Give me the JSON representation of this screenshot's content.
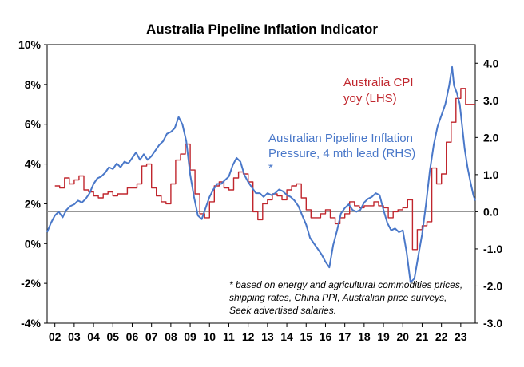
{
  "chart_data": {
    "type": "line",
    "title": "Australia Pipeline Inflation Indicator",
    "y_left": {
      "ticks": [
        "10%",
        "8%",
        "6%",
        "4%",
        "2%",
        "0%",
        "-2%",
        "-4%"
      ],
      "range": [
        -4,
        10
      ]
    },
    "y_right": {
      "ticks": [
        "4.0",
        "3.0",
        "2.0",
        "1.0",
        "0.0",
        "-1.0",
        "-2.0",
        "-3.0"
      ],
      "range": [
        -3,
        4.5
      ]
    },
    "x": {
      "ticks": [
        "02",
        "03",
        "04",
        "05",
        "06",
        "07",
        "08",
        "09",
        "10",
        "11",
        "12",
        "13",
        "14",
        "15",
        "16",
        "17",
        "18",
        "19",
        "20",
        "21",
        "22",
        "23"
      ],
      "range": [
        2001.6,
        2023.75
      ]
    },
    "zero_line_value": 0,
    "annotations": {
      "cpi_line1": "Australia CPI",
      "cpi_line2": "yoy (LHS)",
      "pipe_line1": "Australian Pipeline Inflation",
      "pipe_line2": "Pressure, 4 mth lead (RHS)",
      "pipe_line3": "*",
      "footnote": [
        "* based on energy and agricultural commodities prices,",
        "shipping rates, China PPI, Australian price surveys,",
        "Seek advertised salaries."
      ]
    },
    "colors": {
      "cpi": "#c0262d",
      "pipeline": "#4a78c9",
      "axis": "#000000",
      "zero": "#888888"
    },
    "series": [
      {
        "name": "Australia CPI yoy (LHS)",
        "axis": "left",
        "step": true,
        "points": [
          [
            2002.0,
            2.9
          ],
          [
            2002.25,
            2.8
          ],
          [
            2002.5,
            3.3
          ],
          [
            2002.75,
            3.0
          ],
          [
            2003.0,
            3.2
          ],
          [
            2003.25,
            3.4
          ],
          [
            2003.5,
            2.7
          ],
          [
            2003.75,
            2.6
          ],
          [
            2004.0,
            2.4
          ],
          [
            2004.25,
            2.3
          ],
          [
            2004.5,
            2.5
          ],
          [
            2004.75,
            2.6
          ],
          [
            2005.0,
            2.4
          ],
          [
            2005.25,
            2.5
          ],
          [
            2005.5,
            2.5
          ],
          [
            2005.75,
            2.8
          ],
          [
            2006.0,
            2.8
          ],
          [
            2006.25,
            3.0
          ],
          [
            2006.5,
            3.9
          ],
          [
            2006.75,
            4.0
          ],
          [
            2007.0,
            2.8
          ],
          [
            2007.25,
            2.4
          ],
          [
            2007.5,
            2.1
          ],
          [
            2007.75,
            2.0
          ],
          [
            2008.0,
            3.0
          ],
          [
            2008.25,
            4.2
          ],
          [
            2008.5,
            4.5
          ],
          [
            2008.75,
            5.0
          ],
          [
            2009.0,
            3.7
          ],
          [
            2009.25,
            2.5
          ],
          [
            2009.5,
            1.5
          ],
          [
            2009.75,
            1.3
          ],
          [
            2010.0,
            2.1
          ],
          [
            2010.25,
            2.9
          ],
          [
            2010.5,
            3.1
          ],
          [
            2010.75,
            2.8
          ],
          [
            2011.0,
            2.7
          ],
          [
            2011.25,
            3.3
          ],
          [
            2011.5,
            3.6
          ],
          [
            2011.75,
            3.5
          ],
          [
            2012.0,
            3.1
          ],
          [
            2012.25,
            1.6
          ],
          [
            2012.5,
            1.2
          ],
          [
            2012.75,
            2.0
          ],
          [
            2013.0,
            2.2
          ],
          [
            2013.25,
            2.5
          ],
          [
            2013.5,
            2.4
          ],
          [
            2013.75,
            2.2
          ],
          [
            2014.0,
            2.7
          ],
          [
            2014.25,
            2.9
          ],
          [
            2014.5,
            3.0
          ],
          [
            2014.75,
            2.3
          ],
          [
            2015.0,
            1.7
          ],
          [
            2015.25,
            1.3
          ],
          [
            2015.5,
            1.3
          ],
          [
            2015.75,
            1.5
          ],
          [
            2016.0,
            1.7
          ],
          [
            2016.25,
            1.3
          ],
          [
            2016.5,
            1.0
          ],
          [
            2016.75,
            1.3
          ],
          [
            2017.0,
            1.5
          ],
          [
            2017.25,
            2.1
          ],
          [
            2017.5,
            1.9
          ],
          [
            2017.75,
            1.8
          ],
          [
            2018.0,
            1.9
          ],
          [
            2018.25,
            1.9
          ],
          [
            2018.5,
            2.1
          ],
          [
            2018.75,
            1.9
          ],
          [
            2019.0,
            1.8
          ],
          [
            2019.25,
            1.3
          ],
          [
            2019.5,
            1.6
          ],
          [
            2019.75,
            1.7
          ],
          [
            2020.0,
            1.8
          ],
          [
            2020.25,
            2.2
          ],
          [
            2020.5,
            -0.3
          ],
          [
            2020.75,
            0.7
          ],
          [
            2021.0,
            0.9
          ],
          [
            2021.25,
            1.1
          ],
          [
            2021.5,
            3.8
          ],
          [
            2021.75,
            3.0
          ],
          [
            2022.0,
            3.5
          ],
          [
            2022.25,
            5.1
          ],
          [
            2022.5,
            6.1
          ],
          [
            2022.75,
            7.3
          ],
          [
            2023.0,
            7.8
          ],
          [
            2023.25,
            7.0
          ],
          [
            2023.5,
            7.0
          ]
        ]
      },
      {
        "name": "Australian Pipeline Inflation Pressure, 4 mth lead (RHS)",
        "axis": "right",
        "step": false,
        "points": [
          [
            2001.6,
            -0.55
          ],
          [
            2001.8,
            -0.3
          ],
          [
            2002.0,
            -0.1
          ],
          [
            2002.2,
            0.0
          ],
          [
            2002.4,
            -0.15
          ],
          [
            2002.6,
            0.05
          ],
          [
            2002.8,
            0.15
          ],
          [
            2003.0,
            0.2
          ],
          [
            2003.2,
            0.3
          ],
          [
            2003.4,
            0.25
          ],
          [
            2003.6,
            0.35
          ],
          [
            2003.8,
            0.5
          ],
          [
            2004.0,
            0.75
          ],
          [
            2004.2,
            0.9
          ],
          [
            2004.4,
            0.95
          ],
          [
            2004.6,
            1.05
          ],
          [
            2004.8,
            1.2
          ],
          [
            2005.0,
            1.15
          ],
          [
            2005.2,
            1.3
          ],
          [
            2005.4,
            1.2
          ],
          [
            2005.6,
            1.35
          ],
          [
            2005.8,
            1.3
          ],
          [
            2006.0,
            1.45
          ],
          [
            2006.2,
            1.6
          ],
          [
            2006.4,
            1.4
          ],
          [
            2006.6,
            1.55
          ],
          [
            2006.8,
            1.4
          ],
          [
            2007.0,
            1.5
          ],
          [
            2007.2,
            1.65
          ],
          [
            2007.4,
            1.8
          ],
          [
            2007.6,
            1.9
          ],
          [
            2007.8,
            2.1
          ],
          [
            2008.0,
            2.15
          ],
          [
            2008.2,
            2.25
          ],
          [
            2008.4,
            2.55
          ],
          [
            2008.6,
            2.35
          ],
          [
            2008.8,
            1.9
          ],
          [
            2009.0,
            1.0
          ],
          [
            2009.2,
            0.4
          ],
          [
            2009.4,
            -0.1
          ],
          [
            2009.6,
            -0.2
          ],
          [
            2009.8,
            0.1
          ],
          [
            2010.0,
            0.4
          ],
          [
            2010.2,
            0.6
          ],
          [
            2010.4,
            0.75
          ],
          [
            2010.6,
            0.75
          ],
          [
            2010.8,
            0.85
          ],
          [
            2011.0,
            0.95
          ],
          [
            2011.2,
            1.25
          ],
          [
            2011.4,
            1.45
          ],
          [
            2011.6,
            1.35
          ],
          [
            2011.8,
            1.0
          ],
          [
            2012.0,
            0.8
          ],
          [
            2012.2,
            0.65
          ],
          [
            2012.4,
            0.5
          ],
          [
            2012.6,
            0.5
          ],
          [
            2012.8,
            0.4
          ],
          [
            2013.0,
            0.5
          ],
          [
            2013.2,
            0.45
          ],
          [
            2013.4,
            0.5
          ],
          [
            2013.6,
            0.6
          ],
          [
            2013.8,
            0.55
          ],
          [
            2014.0,
            0.45
          ],
          [
            2014.2,
            0.4
          ],
          [
            2014.4,
            0.3
          ],
          [
            2014.6,
            0.15
          ],
          [
            2014.8,
            -0.1
          ],
          [
            2015.0,
            -0.35
          ],
          [
            2015.2,
            -0.7
          ],
          [
            2015.4,
            -0.85
          ],
          [
            2015.6,
            -1.0
          ],
          [
            2015.8,
            -1.15
          ],
          [
            2016.0,
            -1.35
          ],
          [
            2016.2,
            -1.5
          ],
          [
            2016.4,
            -0.9
          ],
          [
            2016.6,
            -0.5
          ],
          [
            2016.8,
            -0.05
          ],
          [
            2017.0,
            0.1
          ],
          [
            2017.2,
            0.2
          ],
          [
            2017.4,
            0.05
          ],
          [
            2017.6,
            0.0
          ],
          [
            2017.8,
            0.05
          ],
          [
            2018.0,
            0.25
          ],
          [
            2018.2,
            0.35
          ],
          [
            2018.4,
            0.4
          ],
          [
            2018.6,
            0.5
          ],
          [
            2018.8,
            0.45
          ],
          [
            2019.0,
            0.05
          ],
          [
            2019.2,
            -0.3
          ],
          [
            2019.4,
            -0.5
          ],
          [
            2019.6,
            -0.45
          ],
          [
            2019.8,
            -0.55
          ],
          [
            2020.0,
            -0.5
          ],
          [
            2020.2,
            -1.1
          ],
          [
            2020.4,
            -1.9
          ],
          [
            2020.6,
            -1.8
          ],
          [
            2020.8,
            -1.2
          ],
          [
            2021.0,
            -0.6
          ],
          [
            2021.2,
            0.2
          ],
          [
            2021.4,
            1.1
          ],
          [
            2021.6,
            1.8
          ],
          [
            2021.8,
            2.3
          ],
          [
            2022.0,
            2.6
          ],
          [
            2022.2,
            2.9
          ],
          [
            2022.4,
            3.4
          ],
          [
            2022.55,
            3.9
          ],
          [
            2022.65,
            3.4
          ],
          [
            2022.8,
            3.2
          ],
          [
            2022.95,
            2.9
          ],
          [
            2023.05,
            2.4
          ],
          [
            2023.2,
            1.7
          ],
          [
            2023.35,
            1.2
          ],
          [
            2023.5,
            0.8
          ],
          [
            2023.65,
            0.45
          ],
          [
            2023.75,
            0.3
          ]
        ]
      }
    ]
  }
}
